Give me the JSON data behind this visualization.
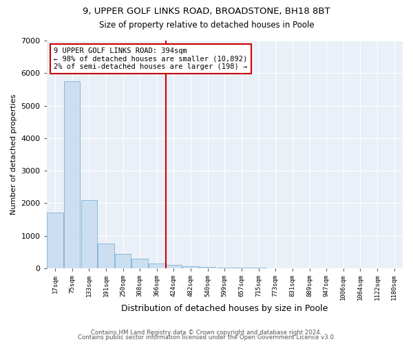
{
  "title_line1": "9, UPPER GOLF LINKS ROAD, BROADSTONE, BH18 8BT",
  "title_line2": "Size of property relative to detached houses in Poole",
  "xlabel": "Distribution of detached houses by size in Poole",
  "ylabel": "Number of detached properties",
  "bar_color": "#ccdff0",
  "bar_edge_color": "#7bafd4",
  "background_color": "#eaf0f7",
  "annotation_text": "9 UPPER GOLF LINKS ROAD: 394sqm\n← 98% of detached houses are smaller (10,892)\n2% of semi-detached houses are larger (198) →",
  "vline_color": "#cc0000",
  "vline_x_category_index": 6,
  "categories": [
    "17sqm",
    "75sqm",
    "133sqm",
    "191sqm",
    "250sqm",
    "308sqm",
    "366sqm",
    "424sqm",
    "482sqm",
    "540sqm",
    "599sqm",
    "657sqm",
    "715sqm",
    "773sqm",
    "831sqm",
    "889sqm",
    "947sqm",
    "1006sqm",
    "1064sqm",
    "1122sqm",
    "1180sqm"
  ],
  "values": [
    1700,
    5750,
    2100,
    750,
    430,
    290,
    145,
    100,
    55,
    30,
    20,
    15,
    10,
    5,
    3,
    2,
    1,
    1,
    1,
    0,
    0
  ],
  "ylim": [
    0,
    7000
  ],
  "yticks": [
    0,
    1000,
    2000,
    3000,
    4000,
    5000,
    6000,
    7000
  ],
  "footer_line1": "Contains HM Land Registry data © Crown copyright and database right 2024.",
  "footer_line2": "Contains public sector information licensed under the Open Government Licence v3.0."
}
